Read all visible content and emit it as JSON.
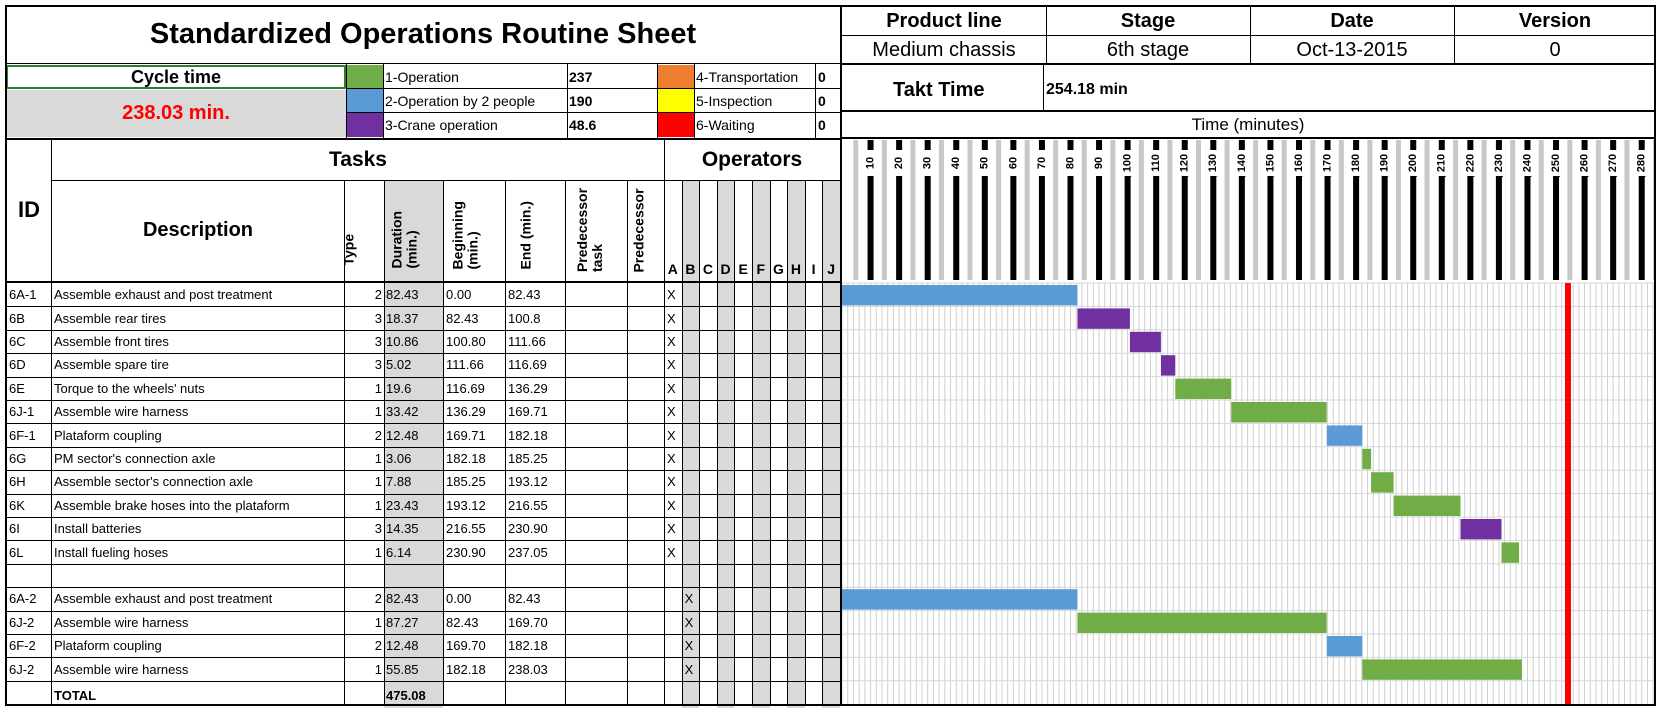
{
  "title": "Standardized Operations Routine Sheet",
  "header_table": {
    "labels": [
      "Product line",
      "Stage",
      "Date",
      "Version"
    ],
    "values": [
      "Medium chassis",
      "6th stage",
      "Oct-13-2015",
      "0"
    ]
  },
  "cycle_time": {
    "label": "Cycle time",
    "value": "238.03 min."
  },
  "legend": [
    {
      "name": "1-Operation",
      "value": "237",
      "color": "#70ad47"
    },
    {
      "name": "2-Operation by 2 people",
      "value": "190",
      "color": "#5b9bd5"
    },
    {
      "name": "3-Crane operation",
      "value": "48.6",
      "color": "#7030a0"
    },
    {
      "name": "4-Transportation",
      "value": "0",
      "color": "#ed7d31"
    },
    {
      "name": "5-Inspection",
      "value": "0",
      "color": "#ffff00"
    },
    {
      "name": "6-Waiting",
      "value": "0",
      "color": "#ff0000"
    }
  ],
  "takt": {
    "label": "Takt Time",
    "value": "254.18 min"
  },
  "time_axis": {
    "label": "Time (minutes)",
    "ticks": [
      "10",
      "20",
      "30",
      "40",
      "50",
      "60",
      "70",
      "80",
      "90",
      "100",
      "110",
      "120",
      "130",
      "140",
      "150",
      "160",
      "170",
      "180",
      "190",
      "200",
      "210",
      "220",
      "230",
      "240",
      "250",
      "260",
      "270",
      "280"
    ]
  },
  "columns": {
    "id": "ID",
    "tasks": "Tasks",
    "description": "Description",
    "type": "Type",
    "duration": "Duration (min.)",
    "beginning": "Beginning (min.)",
    "end": "End (min.)",
    "pred_task": "Predecessor task",
    "pred": "Predecessor",
    "operators": "Operators",
    "operator_letters": [
      "A",
      "B",
      "C",
      "D",
      "E",
      "F",
      "G",
      "H",
      "I",
      "J"
    ]
  },
  "rows": [
    {
      "id": "6A-1",
      "desc": "Assemble exhaust and post treatment",
      "type": "2",
      "dur": "82.43",
      "beg": "0.00",
      "end": "82.43",
      "op": "A"
    },
    {
      "id": "6B",
      "desc": "Assemble rear tires",
      "type": "3",
      "dur": "18.37",
      "beg": "82.43",
      "end": "100.8",
      "op": "A"
    },
    {
      "id": "6C",
      "desc": "Assemble front tires",
      "type": "3",
      "dur": "10.86",
      "beg": "100.80",
      "end": "111.66",
      "op": "A"
    },
    {
      "id": "6D",
      "desc": "Assemble spare tire",
      "type": "3",
      "dur": "5.02",
      "beg": "111.66",
      "end": "116.69",
      "op": "A"
    },
    {
      "id": "6E",
      "desc": "Torque to the wheels' nuts",
      "type": "1",
      "dur": "19.6",
      "beg": "116.69",
      "end": "136.29",
      "op": "A"
    },
    {
      "id": "6J-1",
      "desc": "Assemble wire harness",
      "type": "1",
      "dur": "33.42",
      "beg": "136.29",
      "end": "169.71",
      "op": "A"
    },
    {
      "id": "6F-1",
      "desc": "Plataform coupling",
      "type": "2",
      "dur": "12.48",
      "beg": "169.71",
      "end": "182.18",
      "op": "A"
    },
    {
      "id": "6G",
      "desc": "PM sector's connection axle",
      "type": "1",
      "dur": "3.06",
      "beg": "182.18",
      "end": "185.25",
      "op": "A"
    },
    {
      "id": "6H",
      "desc": "Assemble sector's connection axle",
      "type": "1",
      "dur": "7.88",
      "beg": "185.25",
      "end": "193.12",
      "op": "A"
    },
    {
      "id": "6K",
      "desc": "Assemble brake hoses into the plataform",
      "type": "1",
      "dur": "23.43",
      "beg": "193.12",
      "end": "216.55",
      "op": "A"
    },
    {
      "id": "6I",
      "desc": "Install batteries",
      "type": "3",
      "dur": "14.35",
      "beg": "216.55",
      "end": "230.90",
      "op": "A"
    },
    {
      "id": "6L",
      "desc": "Install fueling hoses",
      "type": "1",
      "dur": "6.14",
      "beg": "230.90",
      "end": "237.05",
      "op": "A"
    },
    {
      "id": "",
      "desc": "",
      "type": "",
      "dur": "",
      "beg": "",
      "end": "",
      "op": ""
    },
    {
      "id": "6A-2",
      "desc": "Assemble exhaust and post treatment",
      "type": "2",
      "dur": "82.43",
      "beg": "0.00",
      "end": "82.43",
      "op": "B"
    },
    {
      "id": "6J-2",
      "desc": "Assemble wire harness",
      "type": "1",
      "dur": "87.27",
      "beg": "82.43",
      "end": "169.70",
      "op": "B"
    },
    {
      "id": "6F-2",
      "desc": "Plataform coupling",
      "type": "2",
      "dur": "12.48",
      "beg": "169.70",
      "end": "182.18",
      "op": "B"
    },
    {
      "id": "6J-2",
      "desc": "Assemble wire harness",
      "type": "1",
      "dur": "55.85",
      "beg": "182.18",
      "end": "238.03",
      "op": "B"
    }
  ],
  "total": {
    "label": "TOTAL",
    "value": "475.08"
  },
  "op_mark": "X",
  "chart_data": {
    "type": "gantt",
    "xlabel": "Time (minutes)",
    "xlim": [
      0,
      285
    ],
    "takt_line": 254.18,
    "type_colors": {
      "1": "#70ad47",
      "2": "#5b9bd5",
      "3": "#7030a0"
    },
    "bars": [
      {
        "row": 0,
        "start": 0.0,
        "end": 82.43,
        "type": "2"
      },
      {
        "row": 1,
        "start": 82.43,
        "end": 100.8,
        "type": "3"
      },
      {
        "row": 2,
        "start": 100.8,
        "end": 111.66,
        "type": "3"
      },
      {
        "row": 3,
        "start": 111.66,
        "end": 116.69,
        "type": "3"
      },
      {
        "row": 4,
        "start": 116.69,
        "end": 136.29,
        "type": "1"
      },
      {
        "row": 5,
        "start": 136.29,
        "end": 169.71,
        "type": "1"
      },
      {
        "row": 6,
        "start": 169.71,
        "end": 182.18,
        "type": "2"
      },
      {
        "row": 7,
        "start": 182.18,
        "end": 185.25,
        "type": "1"
      },
      {
        "row": 8,
        "start": 185.25,
        "end": 193.12,
        "type": "1"
      },
      {
        "row": 9,
        "start": 193.12,
        "end": 216.55,
        "type": "1"
      },
      {
        "row": 10,
        "start": 216.55,
        "end": 230.9,
        "type": "3"
      },
      {
        "row": 11,
        "start": 230.9,
        "end": 237.05,
        "type": "1"
      },
      {
        "row": 13,
        "start": 0.0,
        "end": 82.43,
        "type": "2"
      },
      {
        "row": 14,
        "start": 82.43,
        "end": 169.7,
        "type": "1"
      },
      {
        "row": 15,
        "start": 169.7,
        "end": 182.18,
        "type": "2"
      },
      {
        "row": 16,
        "start": 182.18,
        "end": 238.03,
        "type": "1"
      }
    ]
  }
}
